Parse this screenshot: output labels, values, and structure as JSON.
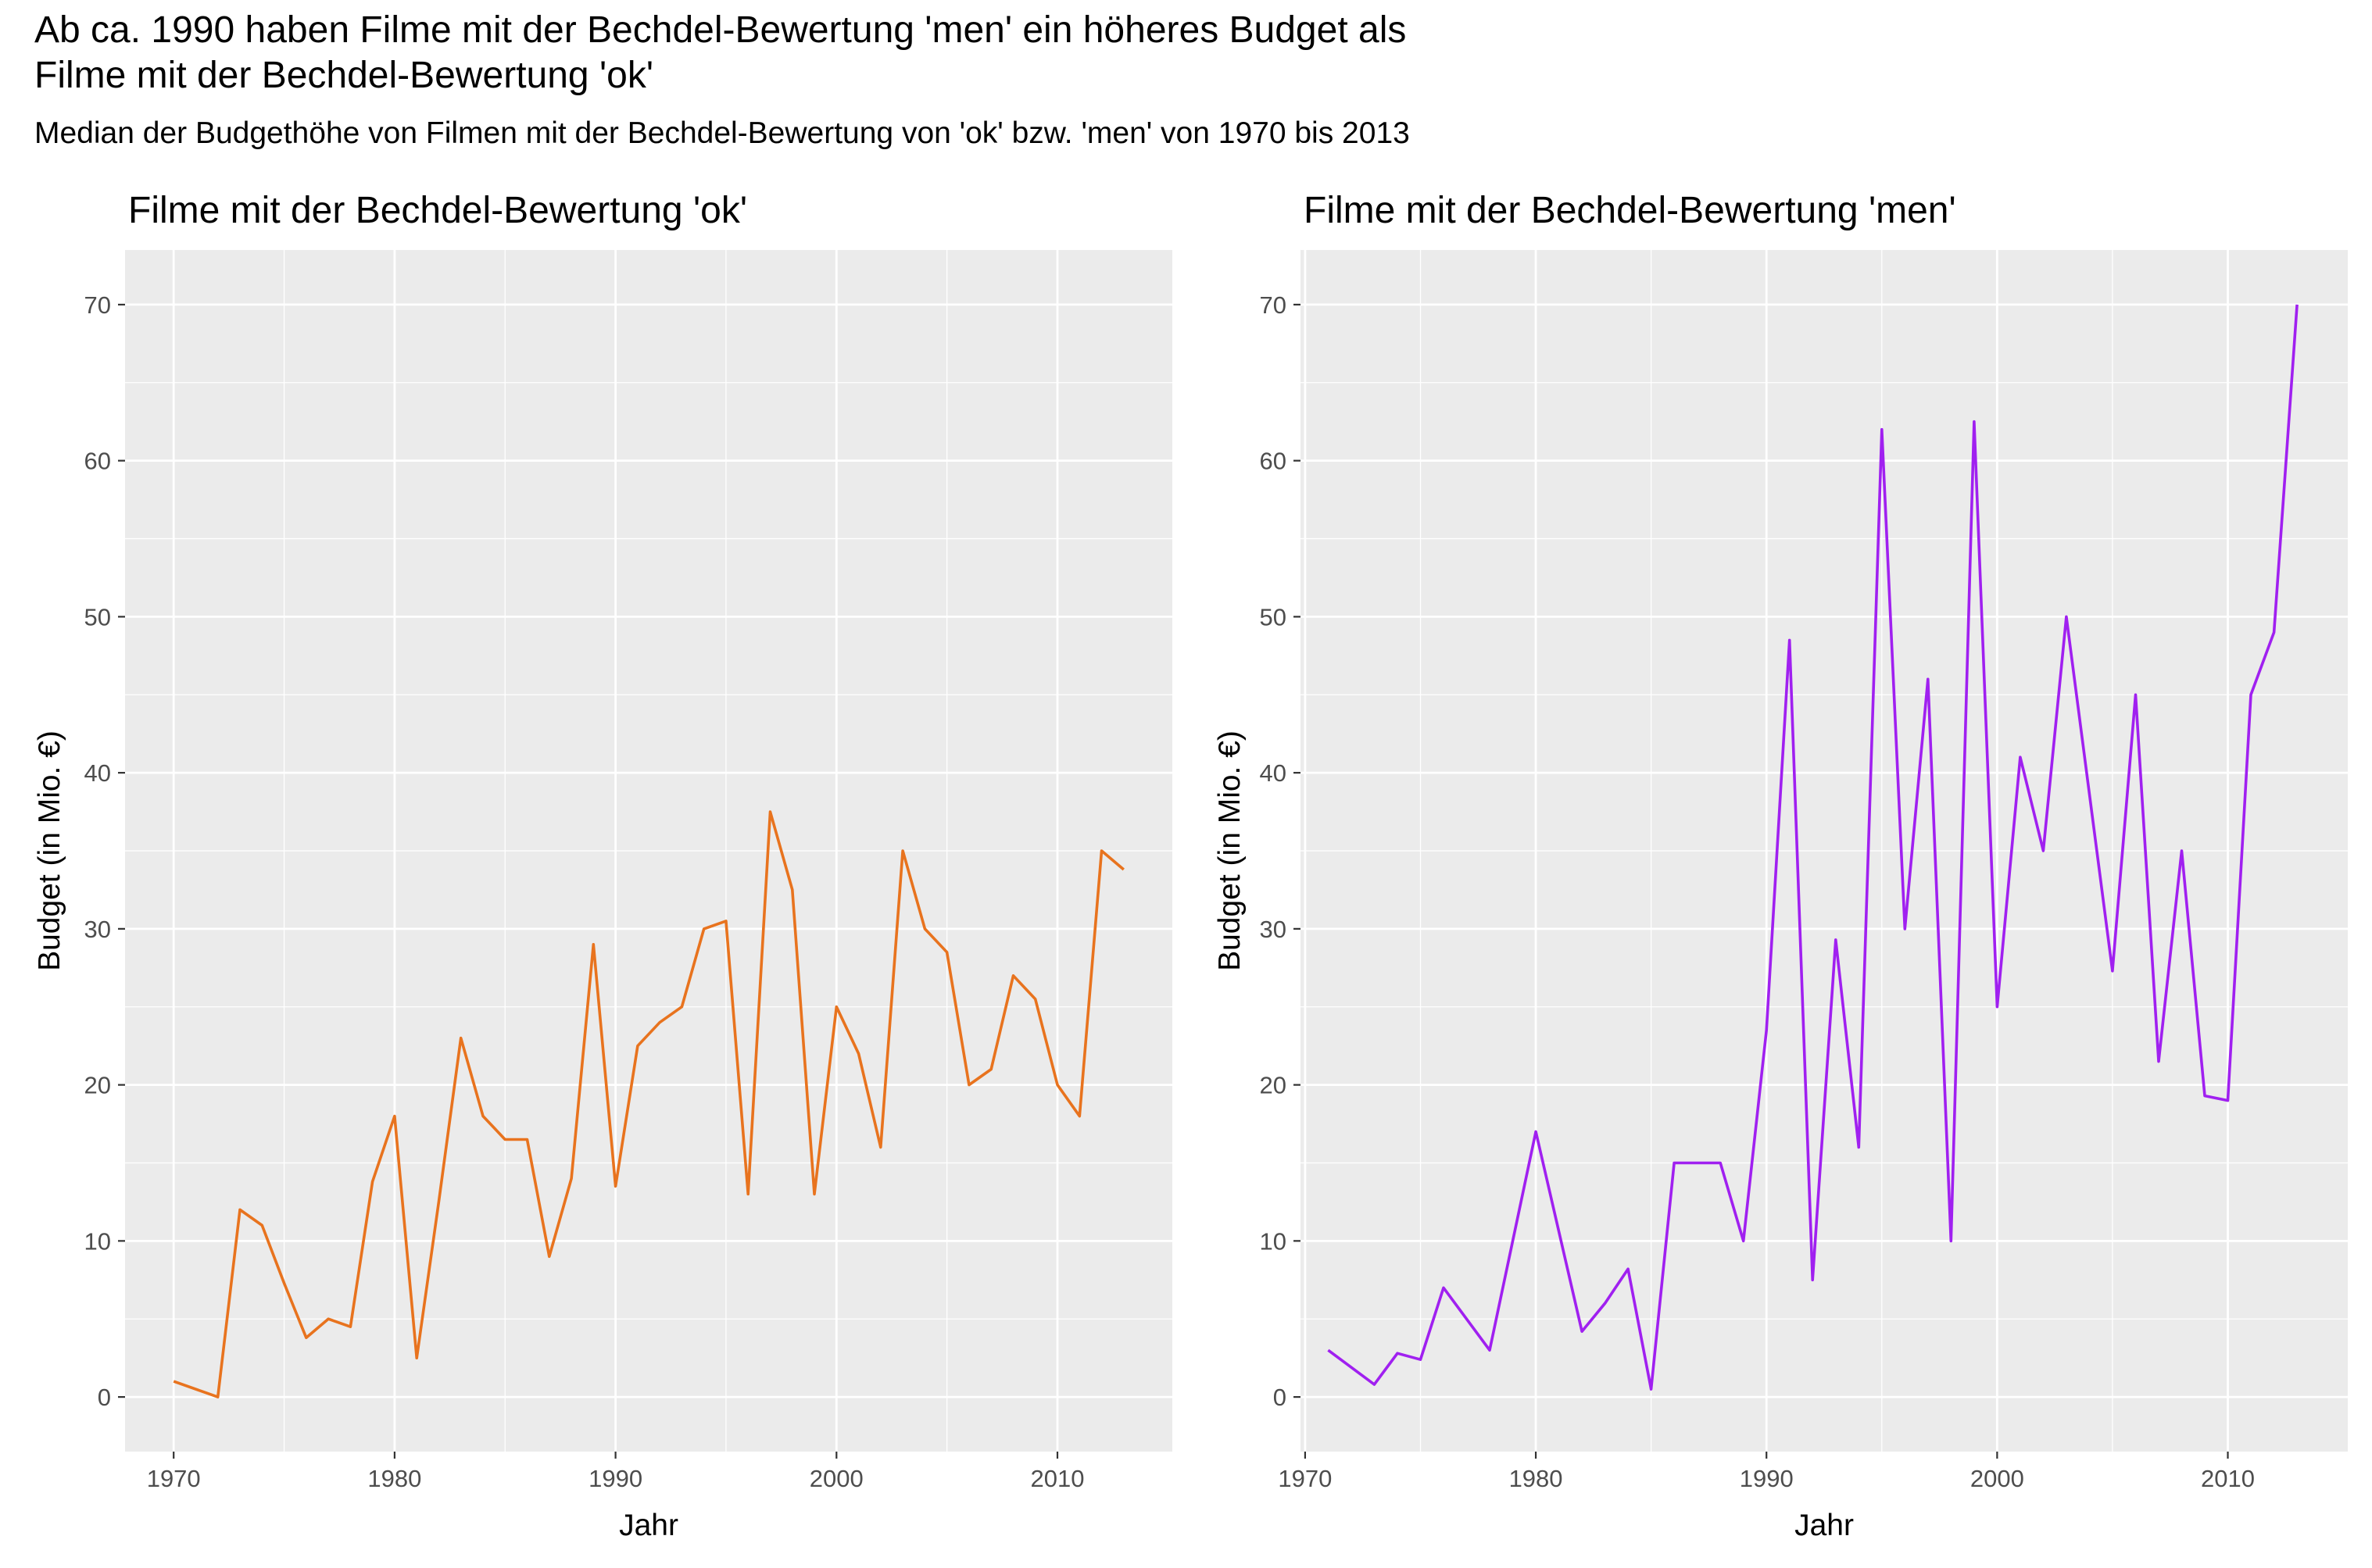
{
  "title_lines": [
    "Ab ca. 1990 haben Filme mit der Bechdel-Bewertung 'men' ein höheres Budget als",
    "Filme mit der Bechdel-Bewertung 'ok'"
  ],
  "subtitle": "Median der Budgethöhe von Filmen mit der Bechdel-Bewertung von 'ok' bzw. 'men' von 1970 bis 2013",
  "chart_data": [
    {
      "type": "line",
      "title": "Filme mit der Bechdel-Bewertung 'ok'",
      "xlabel": "Jahr",
      "ylabel": "Budget (in Mio. €)",
      "xlim": [
        1967.8,
        2015.2
      ],
      "ylim": [
        -3.5,
        73.5
      ],
      "x_ticks": [
        1970,
        1980,
        1990,
        2000,
        2010
      ],
      "y_ticks": [
        0,
        10,
        20,
        30,
        40,
        50,
        60,
        70
      ],
      "grid": true,
      "legend": "none",
      "line_color": "#E8731E",
      "panel_background": "#EBEBEB",
      "series": [
        {
          "x": [
            1970,
            1972,
            1973,
            1974,
            1975,
            1976,
            1977,
            1978,
            1979,
            1980,
            1981,
            1982,
            1983,
            1984,
            1985,
            1986,
            1987,
            1988,
            1989,
            1990,
            1991,
            1992,
            1993,
            1994,
            1995,
            1996,
            1997,
            1998,
            1999,
            2000,
            2001,
            2002,
            2003,
            2004,
            2005,
            2006,
            2007,
            2008,
            2009,
            2010,
            2011,
            2012,
            2013
          ],
          "values": [
            1,
            0,
            12,
            11,
            7.3,
            3.8,
            5,
            4.5,
            13.8,
            18,
            2.5,
            12.5,
            23,
            18,
            16.5,
            16.5,
            9,
            14,
            29,
            13.5,
            22.5,
            24,
            25,
            30,
            30.5,
            13,
            37.5,
            32.5,
            13,
            25,
            22,
            16,
            35,
            30,
            28.5,
            20,
            21,
            27,
            25.5,
            20,
            18,
            35,
            33.8
          ]
        }
      ]
    },
    {
      "type": "line",
      "title": "Filme mit der Bechdel-Bewertung 'men'",
      "xlabel": "Jahr",
      "ylabel": "Budget (in Mio. €)",
      "xlim": [
        1969.8,
        2015.2
      ],
      "ylim": [
        -3.5,
        73.5
      ],
      "x_ticks": [
        1970,
        1980,
        1990,
        2000,
        2010
      ],
      "y_ticks": [
        0,
        10,
        20,
        30,
        40,
        50,
        60,
        70
      ],
      "grid": true,
      "legend": "none",
      "line_color": "#A020F0",
      "panel_background": "#EBEBEB",
      "series": [
        {
          "x": [
            1971,
            1973,
            1974,
            1975,
            1976,
            1978,
            1980,
            1982,
            1983,
            1984,
            1985,
            1986,
            1987,
            1988,
            1989,
            1990,
            1991,
            1992,
            1993,
            1994,
            1995,
            1996,
            1997,
            1998,
            1999,
            2000,
            2001,
            2002,
            2003,
            2005,
            2006,
            2007,
            2008,
            2009,
            2010,
            2011,
            2012,
            2013
          ],
          "values": [
            3,
            0.8,
            2.8,
            2.4,
            7,
            3,
            17,
            4.2,
            6,
            8.2,
            0.5,
            15,
            15,
            15,
            10,
            23.5,
            48.5,
            7.5,
            29.3,
            16,
            62,
            30,
            46,
            10,
            62.5,
            25,
            41,
            35,
            50,
            27.3,
            45,
            21.5,
            35,
            19.3,
            19,
            45,
            49,
            70
          ]
        }
      ]
    }
  ]
}
